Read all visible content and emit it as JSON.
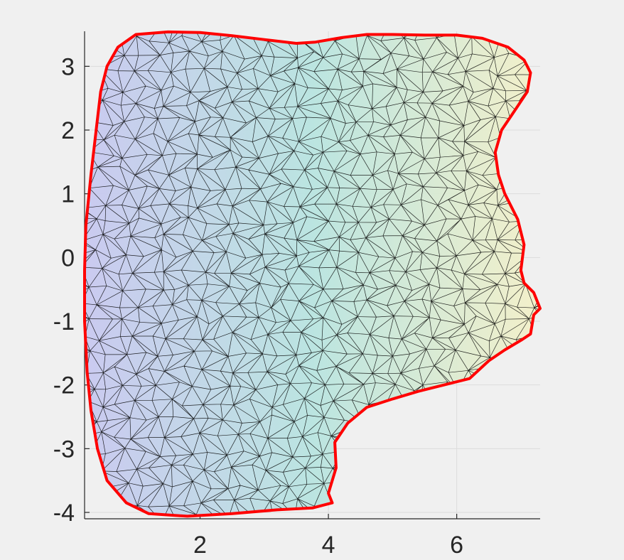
{
  "chart_data": {
    "type": "mesh",
    "title": "",
    "xlabel": "",
    "ylabel": "",
    "xlim": [
      0.2,
      7.3
    ],
    "ylim": [
      -4.1,
      3.55
    ],
    "x_ticks": [
      2,
      4,
      6
    ],
    "y_ticks": [
      3,
      2,
      1,
      0,
      -1,
      -2,
      -3,
      -4
    ],
    "x_tick_labels": [
      "2",
      "4",
      "6"
    ],
    "y_tick_labels": [
      "3",
      "2",
      "1",
      "0",
      "-1",
      "-2",
      "-3",
      "-4"
    ],
    "grid": true,
    "boundary_color": "#ff0000",
    "mesh_edge_color": "#000000",
    "colormap": [
      "#c8c8f0",
      "#b8e4e0",
      "#f4f0c8"
    ],
    "boundary": [
      [
        0.72,
        3.3
      ],
      [
        1.0,
        3.5
      ],
      [
        1.5,
        3.54
      ],
      [
        2.0,
        3.53
      ],
      [
        2.5,
        3.48
      ],
      [
        3.0,
        3.42
      ],
      [
        3.5,
        3.36
      ],
      [
        3.8,
        3.38
      ],
      [
        4.2,
        3.45
      ],
      [
        4.6,
        3.5
      ],
      [
        5.0,
        3.5
      ],
      [
        5.5,
        3.49
      ],
      [
        6.0,
        3.49
      ],
      [
        6.4,
        3.44
      ],
      [
        6.8,
        3.3
      ],
      [
        7.05,
        3.1
      ],
      [
        7.15,
        2.9
      ],
      [
        7.1,
        2.6
      ],
      [
        6.9,
        2.3
      ],
      [
        6.7,
        2.0
      ],
      [
        6.6,
        1.65
      ],
      [
        6.65,
        1.3
      ],
      [
        6.75,
        1.0
      ],
      [
        6.95,
        0.6
      ],
      [
        7.05,
        0.2
      ],
      [
        7.0,
        -0.2
      ],
      [
        7.05,
        -0.4
      ],
      [
        7.2,
        -0.55
      ],
      [
        7.3,
        -0.8
      ],
      [
        7.2,
        -0.9
      ],
      [
        7.15,
        -1.2
      ],
      [
        7.0,
        -1.3
      ],
      [
        6.75,
        -1.45
      ],
      [
        6.5,
        -1.62
      ],
      [
        6.2,
        -1.9
      ],
      [
        5.8,
        -2.0
      ],
      [
        5.4,
        -2.1
      ],
      [
        5.0,
        -2.22
      ],
      [
        4.6,
        -2.35
      ],
      [
        4.3,
        -2.6
      ],
      [
        4.1,
        -2.9
      ],
      [
        4.12,
        -3.3
      ],
      [
        4.0,
        -3.7
      ],
      [
        4.06,
        -3.85
      ],
      [
        3.75,
        -3.93
      ],
      [
        3.2,
        -3.96
      ],
      [
        2.5,
        -4.02
      ],
      [
        1.8,
        -4.06
      ],
      [
        1.2,
        -4.02
      ],
      [
        0.85,
        -3.85
      ],
      [
        0.55,
        -3.5
      ],
      [
        0.4,
        -3.0
      ],
      [
        0.3,
        -2.4
      ],
      [
        0.24,
        -1.8
      ],
      [
        0.2,
        -1.0
      ],
      [
        0.2,
        -0.2
      ],
      [
        0.22,
        0.5
      ],
      [
        0.3,
        1.3
      ],
      [
        0.38,
        2.0
      ],
      [
        0.45,
        2.6
      ],
      [
        0.55,
        3.0
      ]
    ]
  }
}
